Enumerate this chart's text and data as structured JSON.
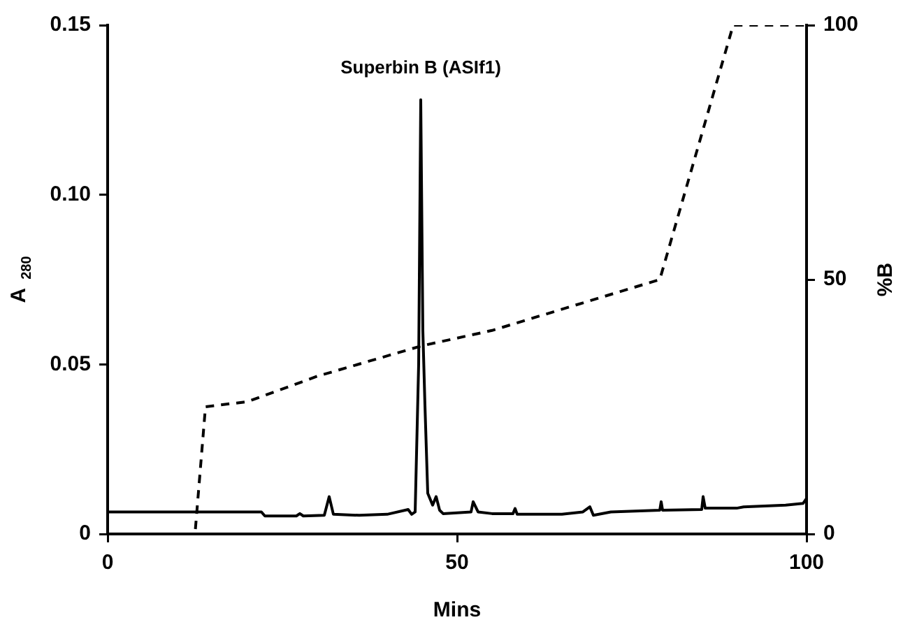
{
  "chart_data": {
    "type": "line",
    "xlabel": "Mins",
    "ylabel": "A$_{280}$",
    "y2label": "%B",
    "xlim": [
      0,
      100
    ],
    "xticks": [
      0,
      50,
      100
    ],
    "ylim": [
      0,
      0.15
    ],
    "yticks": [
      0,
      0.05,
      {
        "value": 0.1,
        "label": "0.10"
      },
      0.15
    ],
    "y2lim": [
      0,
      100
    ],
    "y2ticks": [
      0,
      50,
      100
    ],
    "grid": false,
    "legend": false,
    "marker": "none",
    "annotations": [
      {
        "text": "Superbin B (ASIf1)",
        "x": 44.8,
        "y": 0.128
      }
    ],
    "series": [
      {
        "color": "#000000",
        "line_style": "solid",
        "x": [
          0,
          22,
          22.5,
          27,
          27.5,
          28,
          31,
          31.7,
          32.3,
          36,
          40,
          43,
          43.5,
          44,
          44.5,
          44.8,
          45.1,
          45.4,
          45.8,
          46.5,
          47,
          47.5,
          48,
          52,
          52.3,
          53,
          55,
          58,
          58.3,
          58.6,
          65,
          68,
          69,
          69.5,
          72,
          79,
          79.2,
          79.4,
          85,
          85.2,
          85.5,
          90,
          91,
          97,
          99.5,
          100
        ],
        "values": [
          0.0065,
          0.0065,
          0.0053,
          0.0053,
          0.006,
          0.0053,
          0.0055,
          0.011,
          0.0058,
          0.0055,
          0.0058,
          0.0072,
          0.0058,
          0.0065,
          0.05,
          0.128,
          0.06,
          0.038,
          0.012,
          0.0085,
          0.011,
          0.007,
          0.006,
          0.0065,
          0.0095,
          0.0065,
          0.006,
          0.006,
          0.0075,
          0.0058,
          0.0058,
          0.0065,
          0.008,
          0.0055,
          0.0065,
          0.007,
          0.0095,
          0.007,
          0.0072,
          0.011,
          0.0076,
          0.0076,
          0.008,
          0.0085,
          0.009,
          0.0105
        ]
      },
      {
        "color": "#000000",
        "line_style": "dashed",
        "axis": "y2",
        "x": [
          0,
          12.5,
          14,
          20,
          30,
          45,
          55,
          79,
          89.5,
          100
        ],
        "values": [
          0,
          0,
          25,
          26,
          31,
          37,
          40,
          50,
          100,
          100
        ]
      }
    ]
  }
}
